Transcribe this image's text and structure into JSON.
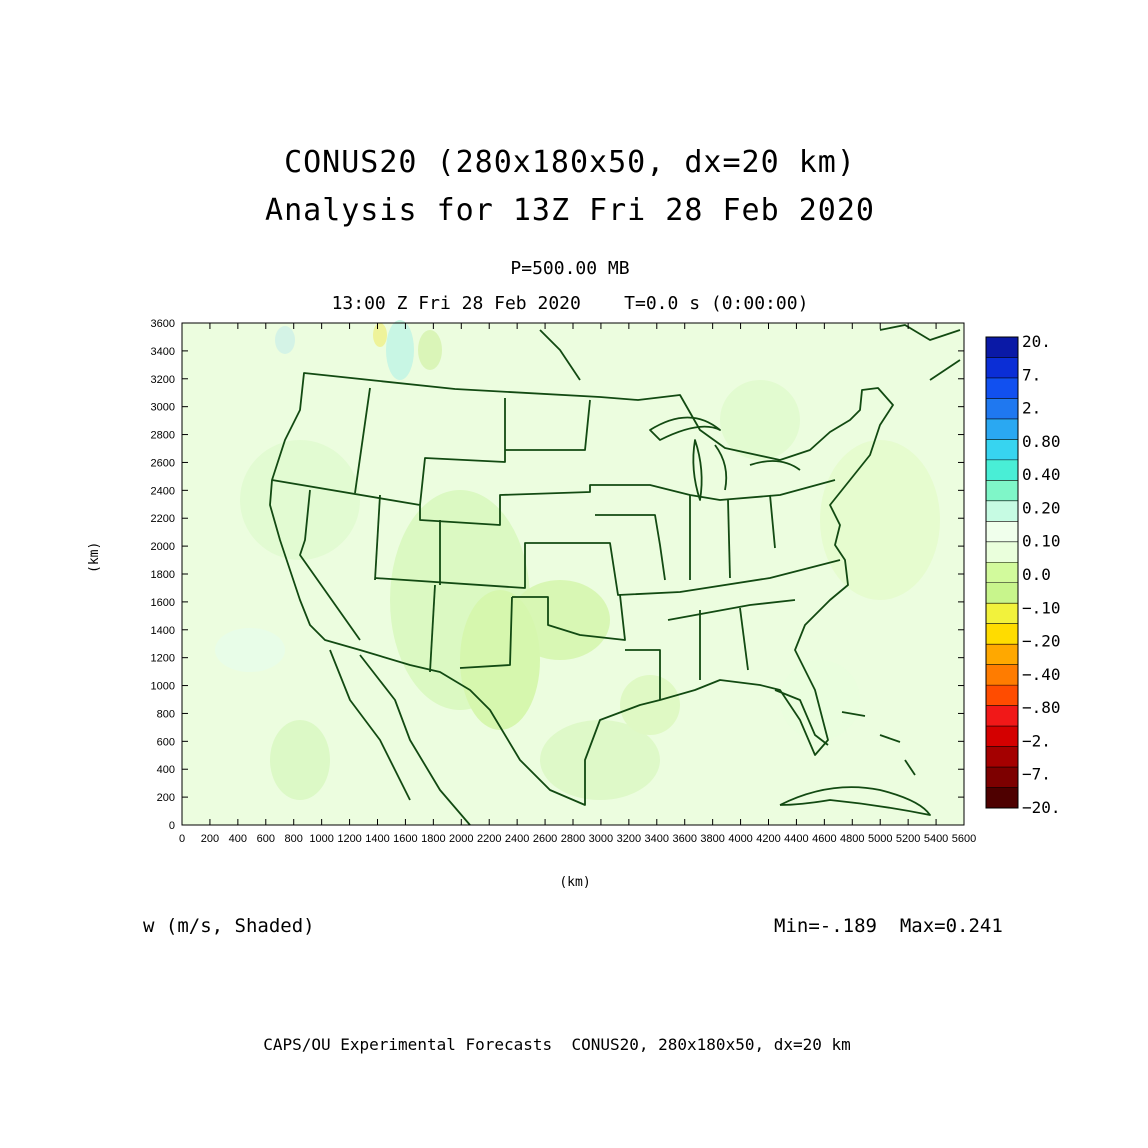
{
  "title": {
    "line1": "CONUS20 (280x180x50, dx=20 km)",
    "line2": "Analysis for 13Z Fri 28 Feb 2020"
  },
  "subtitle": {
    "level": "P=500.00 MB",
    "time": "13:00 Z Fri 28 Feb 2020    T=0.0 s (0:00:00)"
  },
  "axes": {
    "xlabel": "(km)",
    "ylabel": "(km)",
    "xlim": [
      0,
      5600
    ],
    "ylim": [
      0,
      3600
    ],
    "x_ticks": [
      "0",
      "200",
      "400",
      "600",
      "800",
      "1000",
      "1200",
      "1400",
      "1600",
      "1800",
      "2000",
      "2200",
      "2400",
      "2600",
      "2800",
      "3000",
      "3200",
      "3400",
      "3600",
      "3800",
      "4000",
      "4200",
      "4400",
      "4600",
      "4800",
      "5000",
      "5200",
      "5400",
      "5600"
    ],
    "y_ticks": [
      "0",
      "200",
      "400",
      "600",
      "800",
      "1000",
      "1200",
      "1400",
      "1600",
      "1800",
      "2000",
      "2200",
      "2400",
      "2600",
      "2800",
      "3000",
      "3200",
      "3400",
      "3600"
    ]
  },
  "colorbar": {
    "labels": [
      "20.",
      "7.",
      "2.",
      "0.80",
      "0.40",
      "0.20",
      "0.10",
      "0.0",
      "-.10",
      "-.20",
      "-.40",
      "-.80",
      "-2.",
      "-7.",
      "-20."
    ],
    "colors": [
      "#0a19a6",
      "#0b2ed6",
      "#1150f0",
      "#1f78f0",
      "#2aa8f2",
      "#37d4f0",
      "#49eed6",
      "#7ff6c8",
      "#c6fbe3",
      "#f0ffec",
      "#eaffdc",
      "#d2fa9c",
      "#c8f58c",
      "#f2f23c",
      "#ffdc00",
      "#ffa800",
      "#ff7c00",
      "#ff4c00",
      "#f11818",
      "#d40000",
      "#a40000",
      "#7d0000",
      "#4e0000"
    ]
  },
  "field": {
    "label": "w (m/s, Shaded)",
    "minmax": "Min=-.189  Max=0.241"
  },
  "footer": "CAPS/OU Experimental Forecasts  CONUS20, 280x180x50, dx=20 km"
}
